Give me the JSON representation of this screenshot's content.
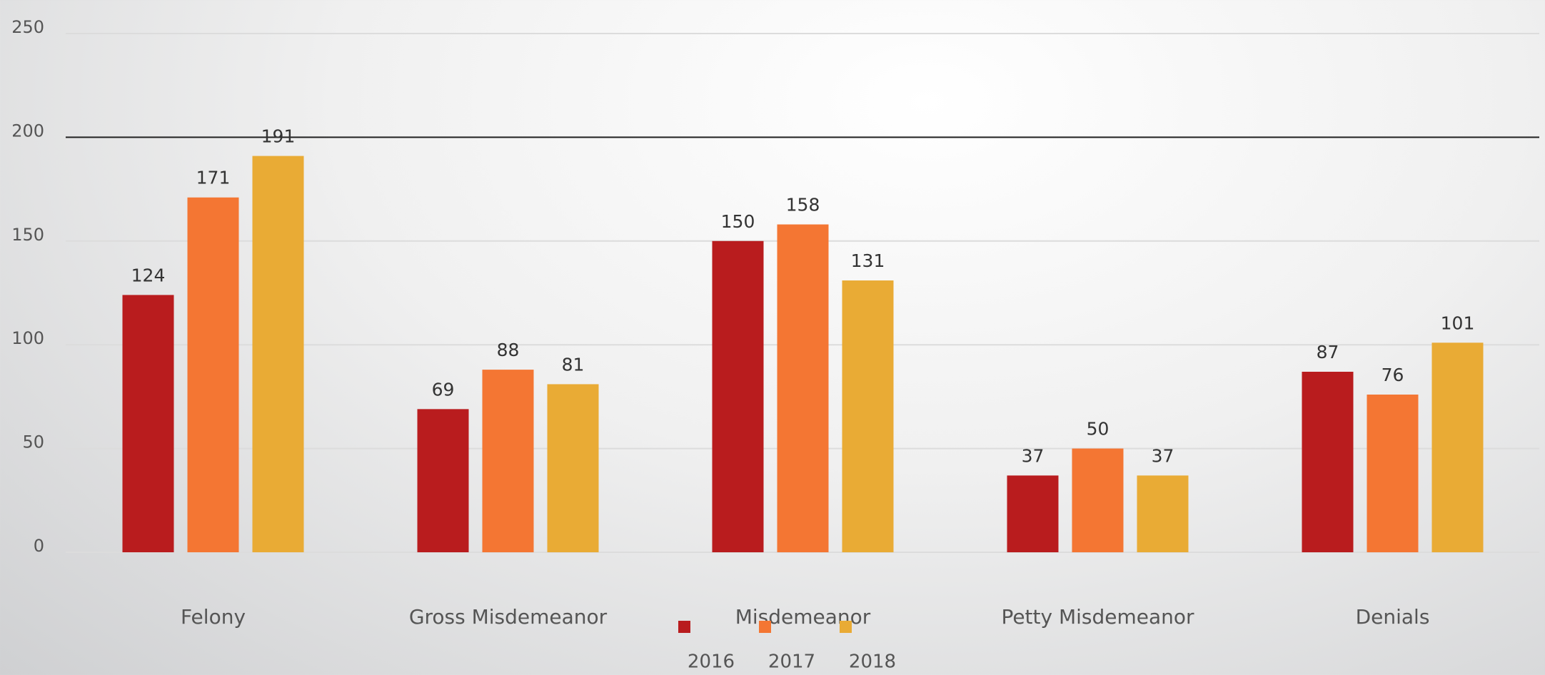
{
  "chart_data": {
    "type": "bar",
    "categories": [
      "Felony",
      "Gross Misdemeanor",
      "Misdemeanor",
      "Petty Misdemeanor",
      "Denials"
    ],
    "series": [
      {
        "name": "2016",
        "color": "#b91c1e",
        "values": [
          124,
          69,
          150,
          37,
          87
        ]
      },
      {
        "name": "2017",
        "color": "#f47633",
        "values": [
          171,
          88,
          158,
          50,
          76
        ]
      },
      {
        "name": "2018",
        "color": "#e9ab35",
        "values": [
          191,
          81,
          131,
          37,
          101
        ]
      }
    ],
    "ylim": [
      0,
      250
    ],
    "yticks": [
      0,
      50,
      100,
      150,
      200,
      250
    ],
    "grid": true,
    "reference_line": 200,
    "legend": "bottom"
  }
}
